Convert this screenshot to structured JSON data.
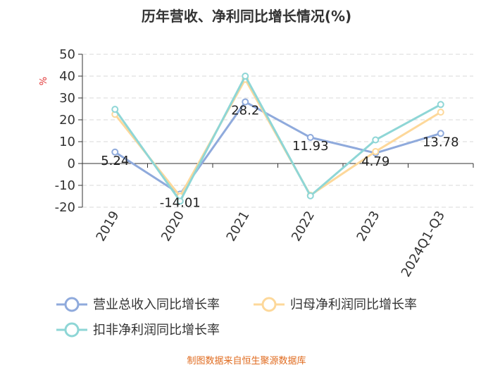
{
  "chart_data": {
    "type": "line",
    "title": "历年营收、净利同比增长情况(%)",
    "ylabel": "%",
    "categories": [
      "2019",
      "2020",
      "2021",
      "2022",
      "2023",
      "2024Q1-Q3"
    ],
    "ylim": [
      -20,
      50
    ],
    "yticks": [
      50,
      40,
      30,
      20,
      10,
      0,
      -10,
      -20
    ],
    "grid": true,
    "legend_position": "bottom",
    "series": [
      {
        "name": "营业总收入同比增长率",
        "color": "#8faadc",
        "values": [
          5.24,
          -14.01,
          28.2,
          11.93,
          4.79,
          13.78
        ],
        "labels": [
          "5.24",
          "-14.01",
          "28.2",
          "11.93",
          "4.79",
          "13.78"
        ]
      },
      {
        "name": "归母净利润同比增长率",
        "color": "#fdd89a",
        "values": [
          22.5,
          -15.0,
          38.5,
          -14.5,
          5.5,
          23.5
        ],
        "labels": []
      },
      {
        "name": "扣非净利润同比增长率",
        "color": "#8ed6d6",
        "values": [
          24.8,
          -17.2,
          40.0,
          -14.8,
          10.8,
          27.0
        ],
        "labels": []
      }
    ]
  },
  "source": "制图数据来自恒生聚源数据库"
}
